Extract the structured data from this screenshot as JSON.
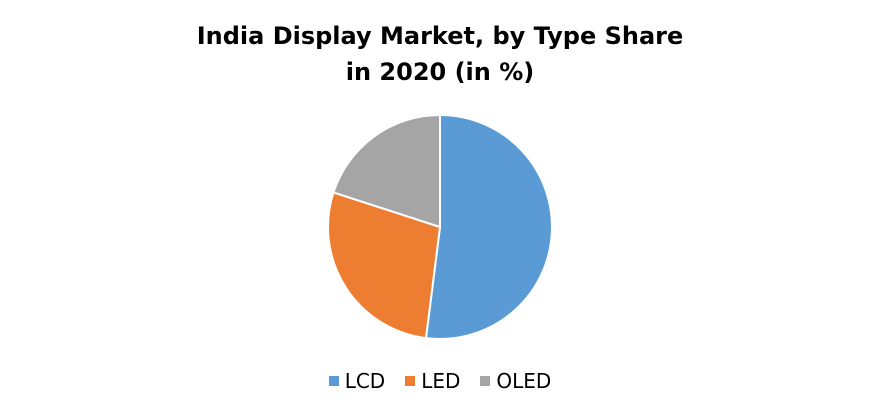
{
  "chart_data": {
    "type": "pie",
    "title_lines": [
      "India Display Market, by Type Share",
      "in 2020 (in %)"
    ],
    "categories": [
      "LCD",
      "LED",
      "OLED"
    ],
    "values": [
      52,
      28,
      20
    ],
    "colors": [
      "#5B9BD5",
      "#ED7D31",
      "#A5A5A5"
    ],
    "start_angle_deg": 0,
    "direction": "clockwise",
    "legend_position": "bottom",
    "data_labels": false
  }
}
